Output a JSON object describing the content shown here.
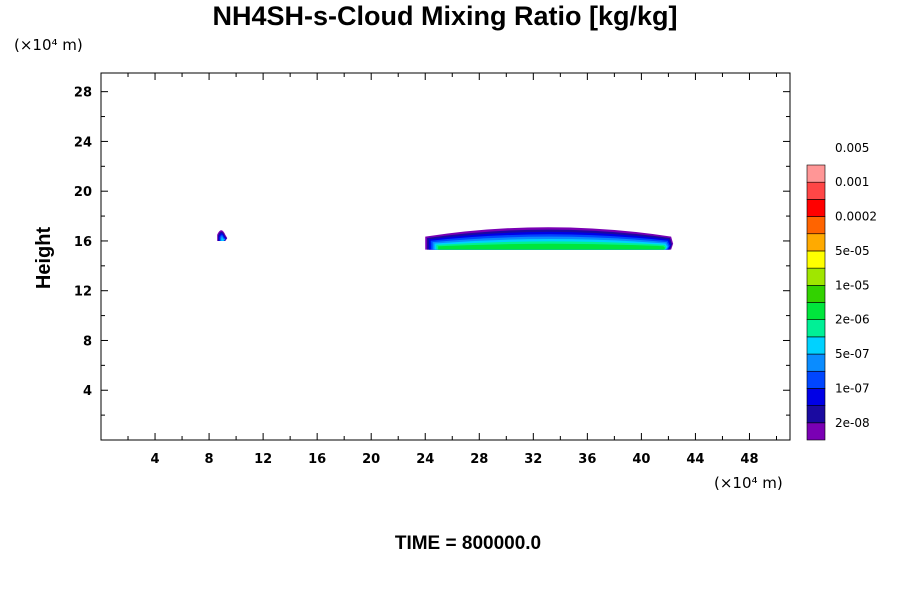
{
  "chart_data": {
    "type": "heatmap",
    "title": "NH4SH-s-Cloud Mixing Ratio [kg/kg]",
    "xlabel": "",
    "ylabel": "Height",
    "x_unit": "(×10⁴ m)",
    "y_unit": "(×10⁴ m)",
    "xlim": [
      0,
      51
    ],
    "ylim": [
      0,
      29.5
    ],
    "x_ticks": [
      4,
      8,
      12,
      16,
      20,
      24,
      28,
      32,
      36,
      40,
      44,
      48
    ],
    "y_ticks": [
      4,
      8,
      12,
      16,
      20,
      24,
      28
    ],
    "footer": "TIME = 800000.0",
    "colorbar": {
      "colors": [
        "#7a00b4",
        "#1a0aa0",
        "#0000e6",
        "#0046ff",
        "#0a8cff",
        "#00d2ff",
        "#00f096",
        "#00e63c",
        "#32d200",
        "#a0e600",
        "#ffff00",
        "#ffaa00",
        "#ff6400",
        "#ff0000",
        "#ff4646",
        "#ff9696"
      ],
      "labels": [
        "2e-08",
        "1e-07",
        "5e-07",
        "2e-06",
        "1e-05",
        "5e-05",
        "0.0002",
        "0.001",
        "0.005"
      ]
    },
    "features": [
      {
        "x_range": [
          8.6,
          9.2
        ],
        "y_range": [
          16.0,
          16.9
        ],
        "level": "5e-07"
      },
      {
        "x_range": [
          24.0,
          42.2
        ],
        "y_range": [
          15.3,
          17.2
        ],
        "level": "1e-05"
      }
    ]
  }
}
